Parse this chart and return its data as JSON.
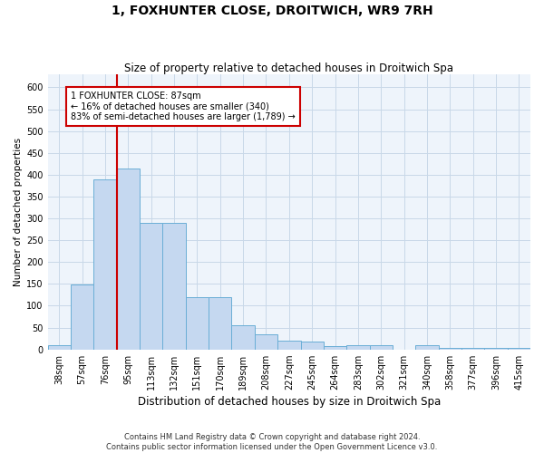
{
  "title": "1, FOXHUNTER CLOSE, DROITWICH, WR9 7RH",
  "subtitle": "Size of property relative to detached houses in Droitwich Spa",
  "xlabel": "Distribution of detached houses by size in Droitwich Spa",
  "ylabel": "Number of detached properties",
  "footer_line1": "Contains HM Land Registry data © Crown copyright and database right 2024.",
  "footer_line2": "Contains public sector information licensed under the Open Government Licence v3.0.",
  "bin_labels": [
    "38sqm",
    "57sqm",
    "76sqm",
    "95sqm",
    "113sqm",
    "132sqm",
    "151sqm",
    "170sqm",
    "189sqm",
    "208sqm",
    "227sqm",
    "245sqm",
    "264sqm",
    "283sqm",
    "302sqm",
    "321sqm",
    "340sqm",
    "358sqm",
    "377sqm",
    "396sqm",
    "415sqm"
  ],
  "bar_heights": [
    10,
    148,
    390,
    415,
    290,
    290,
    120,
    120,
    55,
    35,
    20,
    18,
    7,
    10,
    10,
    0,
    10,
    3,
    3,
    3,
    3
  ],
  "bar_color": "#c5d8f0",
  "bar_edge_color": "#6aaed6",
  "grid_color": "#c8d8e8",
  "bg_color": "#eef4fb",
  "vline_color": "#cc0000",
  "annotation_text": "1 FOXHUNTER CLOSE: 87sqm\n← 16% of detached houses are smaller (340)\n83% of semi-detached houses are larger (1,789) →",
  "annotation_box_color": "#ffffff",
  "annotation_box_edge": "#cc0000",
  "ylim": [
    0,
    630
  ],
  "yticks": [
    0,
    50,
    100,
    150,
    200,
    250,
    300,
    350,
    400,
    450,
    500,
    550,
    600
  ],
  "title_fontsize": 10,
  "subtitle_fontsize": 8.5,
  "ylabel_fontsize": 7.5,
  "xlabel_fontsize": 8.5,
  "tick_fontsize": 7,
  "annot_fontsize": 7,
  "footer_fontsize": 6
}
